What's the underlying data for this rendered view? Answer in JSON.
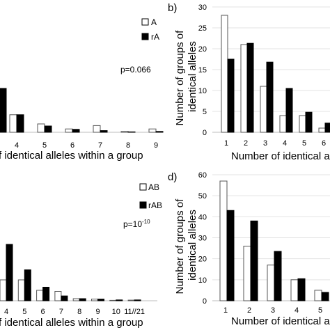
{
  "chart_data": [
    {
      "id": "a",
      "type": "bar",
      "panel_label": "",
      "xlabel": "f identical alleles within a group",
      "ylabel": "",
      "annotation": "p=0.066",
      "legend": [
        "A",
        "rA"
      ],
      "legend_position": "top-right",
      "ylim": [
        0,
        30
      ],
      "categories": [
        "4",
        "5",
        "6",
        "7",
        "8",
        "9"
      ],
      "series": [
        {
          "name": "A",
          "values": [
            4.2,
            2.0,
            0.8,
            1.6,
            0.2,
            0.8
          ]
        },
        {
          "name": "rA",
          "values": [
            4.2,
            1.5,
            0.7,
            0.4,
            0.1,
            0.2
          ]
        }
      ],
      "left_partial_bar": 10.5,
      "colors": {
        "A": "#ffffff",
        "rA": "#000000"
      }
    },
    {
      "id": "b",
      "type": "bar",
      "panel_label": "b)",
      "xlabel": "Number of identical a",
      "ylabel": "Number of groups of identical alleles",
      "ylim": [
        0,
        30
      ],
      "yticks": [
        "0",
        "5",
        "10",
        "15",
        "20",
        "25",
        "30"
      ],
      "categories": [
        "1",
        "2",
        "3",
        "4",
        "5",
        "6"
      ],
      "series": [
        {
          "name": "A",
          "values": [
            28,
            21,
            11,
            4,
            4,
            1
          ]
        },
        {
          "name": "rA",
          "values": [
            17.5,
            21.3,
            16.8,
            10.5,
            4.8,
            2.2
          ]
        }
      ]
    },
    {
      "id": "c",
      "type": "bar",
      "panel_label": "",
      "xlabel": "f identical alleles within a group",
      "ylabel": "",
      "annotation": "p=10",
      "annotation_sup": "-10",
      "legend": [
        "AB",
        "rAB"
      ],
      "legend_position": "top-right",
      "ylim": [
        0,
        60
      ],
      "categories": [
        "4",
        "5",
        "6",
        "7",
        "8",
        "9",
        "10",
        "11//21"
      ],
      "series": [
        {
          "name": "AB",
          "values": [
            10.0,
            10.0,
            5.0,
            4.5,
            1.0,
            0.8,
            0.2,
            0.3
          ]
        },
        {
          "name": "rAB",
          "values": [
            27.0,
            14.8,
            6.5,
            2.3,
            1.0,
            0.8,
            0.4,
            0.4
          ]
        }
      ]
    },
    {
      "id": "d",
      "type": "bar",
      "panel_label": "d)",
      "xlabel": "Number of identical a",
      "ylabel": "Number of groups of identical alleles",
      "ylim": [
        0,
        60
      ],
      "yticks": [
        "0",
        "10",
        "20",
        "30",
        "40",
        "50",
        "60"
      ],
      "categories": [
        "1",
        "2",
        "3",
        "4",
        "5"
      ],
      "series": [
        {
          "name": "AB",
          "values": [
            57,
            26,
            17,
            10,
            5
          ]
        },
        {
          "name": "rAB",
          "values": [
            43,
            38,
            23.5,
            10.5,
            4
          ]
        }
      ]
    }
  ]
}
